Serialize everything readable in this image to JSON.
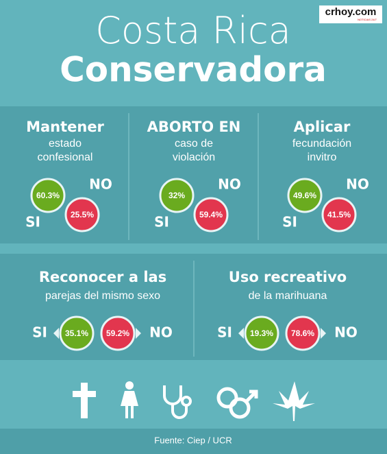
{
  "header": {
    "logo": "crhoy.com",
    "logo_sub": "NOTICIAS 24/7",
    "title_line1": "Costa Rica",
    "title_line2": "Conservadora"
  },
  "panels": [
    {
      "title": "Mantener",
      "subtitle": [
        "estado",
        "confesional"
      ],
      "si_label": "SI",
      "si": "60.3%",
      "no_label": "NO",
      "no": "25.5%"
    },
    {
      "title": "ABORTO EN",
      "subtitle": [
        "caso de",
        "violación"
      ],
      "si_label": "SI",
      "si": "32%",
      "no_label": "NO",
      "no": "59.4%"
    },
    {
      "title": "Aplicar",
      "subtitle": [
        "fecundación",
        "invitro"
      ],
      "si_label": "SI",
      "si": "49.6%",
      "no_label": "NO",
      "no": "41.5%"
    },
    {
      "title": "Reconocer a las",
      "subtitle": [
        "parejas del mismo sexo"
      ],
      "si_label": "SI",
      "si": "35.1%",
      "no_label": "NO",
      "no": "59.2%"
    },
    {
      "title": "Uso recreativo",
      "subtitle": [
        "de la marihuana"
      ],
      "si_label": "SI",
      "si": "19.3%",
      "no_label": "NO",
      "no": "78.6%"
    }
  ],
  "footer": "Fuente: Ciep / UCR"
}
